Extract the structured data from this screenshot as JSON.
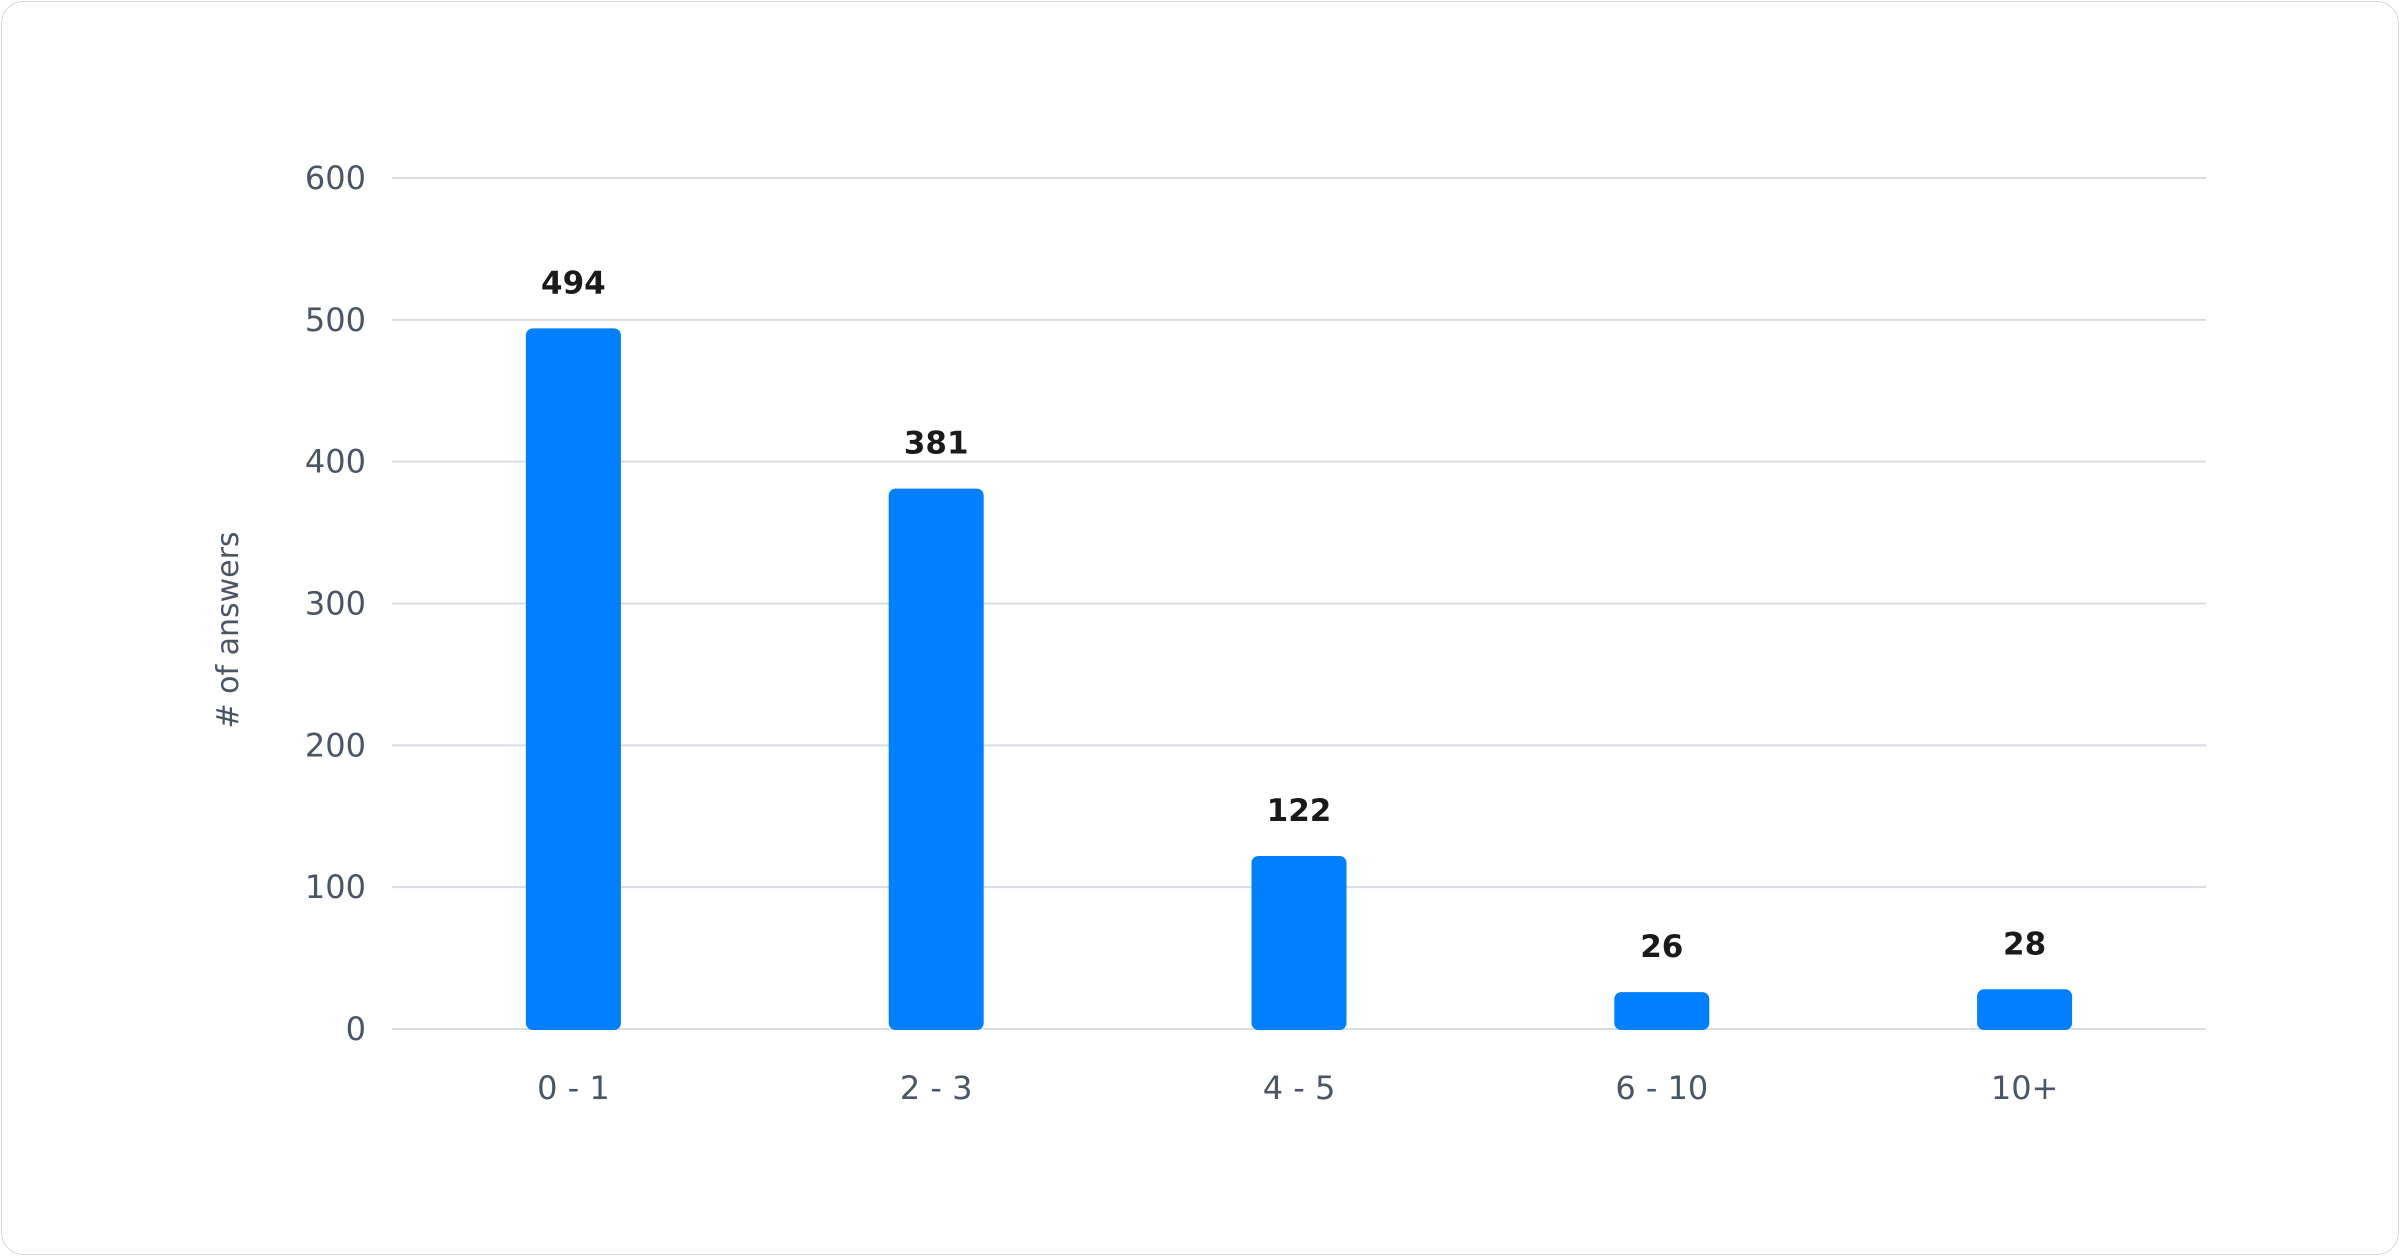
{
  "chart_data": {
    "type": "bar",
    "categories": [
      "0 - 1",
      "2 - 3",
      "4 - 5",
      "6 - 10",
      "10+"
    ],
    "values": [
      494,
      381,
      122,
      26,
      28
    ],
    "title": "",
    "xlabel": "",
    "ylabel": "# of answers",
    "ylim": [
      0,
      600
    ],
    "yticks": [
      0,
      100,
      200,
      300,
      400,
      500,
      600
    ],
    "grid": true,
    "data_labels": true,
    "bar_color": "#0080ff"
  }
}
